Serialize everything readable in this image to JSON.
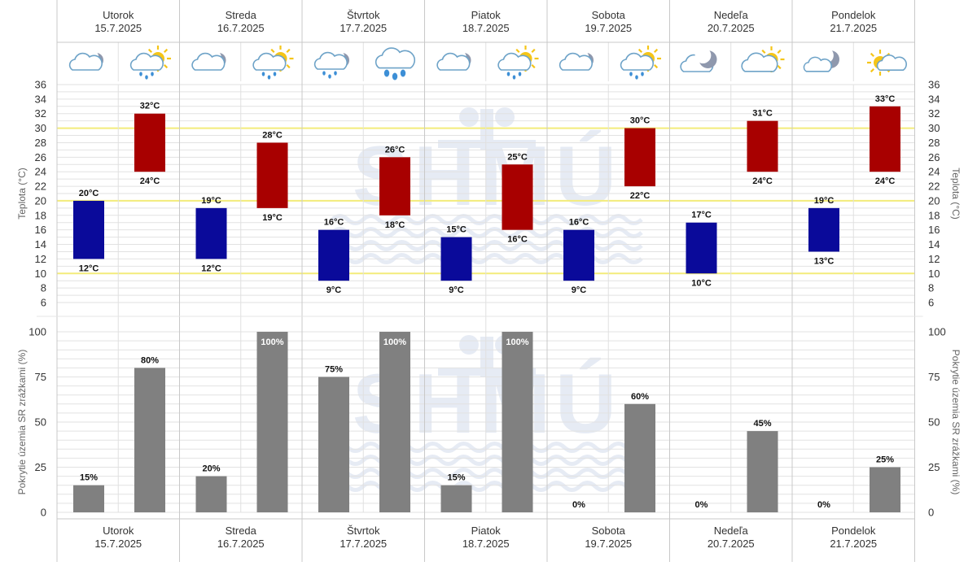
{
  "chart_data": {
    "type": "bar",
    "days": [
      {
        "name": "Utorok",
        "date": "15.7.2025",
        "icons": [
          "cloudy-night",
          "rain-sun"
        ]
      },
      {
        "name": "Streda",
        "date": "16.7.2025",
        "icons": [
          "cloudy-night",
          "rain-sun"
        ]
      },
      {
        "name": "Štvrtok",
        "date": "17.7.2025",
        "icons": [
          "rain-night",
          "heavy-rain"
        ]
      },
      {
        "name": "Piatok",
        "date": "18.7.2025",
        "icons": [
          "cloudy-night",
          "rain-sun"
        ]
      },
      {
        "name": "Sobota",
        "date": "19.7.2025",
        "icons": [
          "cloudy-night",
          "rain-sun"
        ]
      },
      {
        "name": "Nedeľa",
        "date": "20.7.2025",
        "icons": [
          "clear-night",
          "cloudy-sun"
        ]
      },
      {
        "name": "Pondelok",
        "date": "21.7.2025",
        "icons": [
          "partly-cloudy-night",
          "sun-clouds"
        ]
      }
    ],
    "temperature": {
      "ylabel": "Teplota (°C)",
      "ylim": [
        6,
        36
      ],
      "ticks": [
        6,
        8,
        10,
        12,
        14,
        16,
        18,
        20,
        22,
        24,
        26,
        28,
        30,
        32,
        34,
        36
      ],
      "reference_lines": [
        10,
        20,
        30
      ],
      "unit": "°C",
      "night": [
        {
          "low": 12,
          "high": 20
        },
        {
          "low": 12,
          "high": 19
        },
        {
          "low": 9,
          "high": 16
        },
        {
          "low": 9,
          "high": 15
        },
        {
          "low": 9,
          "high": 16
        },
        {
          "low": 10,
          "high": 17
        },
        {
          "low": 13,
          "high": 19
        }
      ],
      "day": [
        {
          "low": 24,
          "high": 32
        },
        {
          "low": 19,
          "high": 28
        },
        {
          "low": 18,
          "high": 26
        },
        {
          "low": 16,
          "high": 25
        },
        {
          "low": 22,
          "high": 30
        },
        {
          "low": 24,
          "high": 31
        },
        {
          "low": 24,
          "high": 33
        }
      ],
      "night_color": "#0a0a9a",
      "day_color": "#a80000"
    },
    "precipitation": {
      "ylabel": "Pokrytie územia SR zrážkami (%)",
      "ylim": [
        0,
        100
      ],
      "ticks": [
        0,
        25,
        50,
        75,
        100
      ],
      "unit": "%",
      "night": [
        15,
        20,
        75,
        15,
        0,
        0,
        0
      ],
      "day": [
        80,
        100,
        100,
        100,
        60,
        45,
        25
      ],
      "bar_color": "#808080"
    },
    "watermark": "SHMÚ"
  }
}
